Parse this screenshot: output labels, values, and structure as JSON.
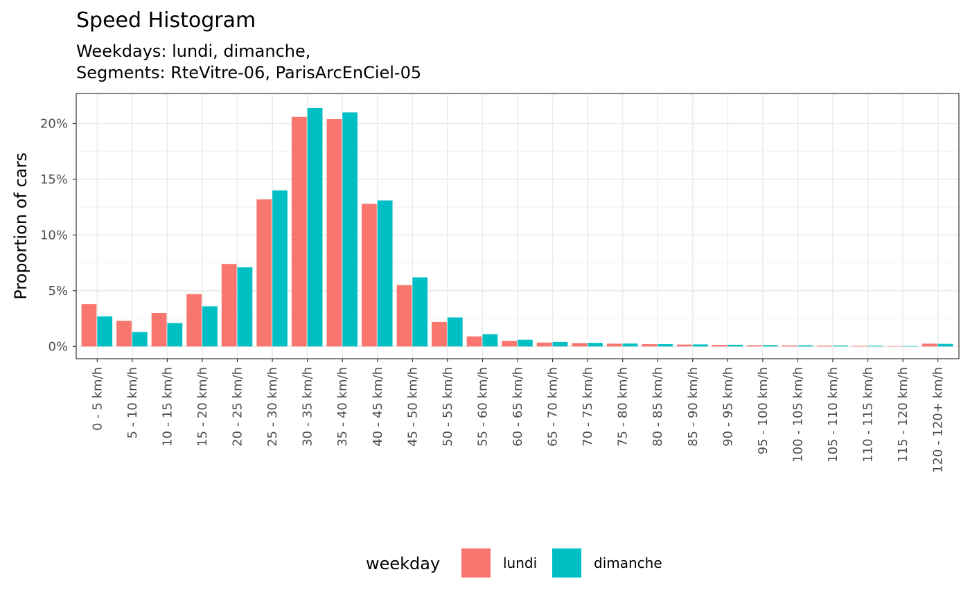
{
  "chart_data": {
    "type": "bar",
    "title": "Speed Histogram",
    "subtitle_lines": [
      "Weekdays: lundi, dimanche,",
      "Segments: RteVitre-06, ParisArcEnCiel-05"
    ],
    "xlabel": "",
    "ylabel": "Proportion of cars",
    "ylim": [
      -0.011,
      0.227
    ],
    "y_ticks": [
      0,
      0.05,
      0.1,
      0.15,
      0.2
    ],
    "y_tick_labels": [
      "0%",
      "5%",
      "10%",
      "15%",
      "20%"
    ],
    "grid": true,
    "categories": [
      "0 - 5 km/h",
      "5 - 10 km/h",
      "10 - 15 km/h",
      "15 - 20 km/h",
      "20 - 25 km/h",
      "25 - 30 km/h",
      "30 - 35 km/h",
      "35 - 40 km/h",
      "40 - 45 km/h",
      "45 - 50 km/h",
      "50 - 55 km/h",
      "55 - 60 km/h",
      "60 - 65 km/h",
      "65 - 70 km/h",
      "70 - 75 km/h",
      "75 - 80 km/h",
      "80 - 85 km/h",
      "85 - 90 km/h",
      "90 - 95 km/h",
      "95 - 100 km/h",
      "100 - 105 km/h",
      "105 - 110 km/h",
      "110 - 115 km/h",
      "115 - 120 km/h",
      "120 - 120+ km/h"
    ],
    "series": [
      {
        "name": "lundi",
        "color": "#F8766D",
        "values": [
          0.038,
          0.023,
          0.03,
          0.047,
          0.074,
          0.132,
          0.206,
          0.204,
          0.128,
          0.055,
          0.022,
          0.009,
          0.005,
          0.0035,
          0.003,
          0.0025,
          0.002,
          0.0017,
          0.0014,
          0.0011,
          0.0009,
          0.0007,
          0.0005,
          0.0004,
          0.0025
        ]
      },
      {
        "name": "dimanche",
        "color": "#00BFC4",
        "values": [
          0.027,
          0.013,
          0.021,
          0.036,
          0.071,
          0.14,
          0.214,
          0.21,
          0.131,
          0.062,
          0.026,
          0.011,
          0.006,
          0.004,
          0.0032,
          0.0026,
          0.0021,
          0.0018,
          0.0015,
          0.0012,
          0.001,
          0.0008,
          0.0006,
          0.0004,
          0.0023
        ]
      }
    ],
    "legend": {
      "title": "weekday",
      "position": "bottom"
    }
  }
}
